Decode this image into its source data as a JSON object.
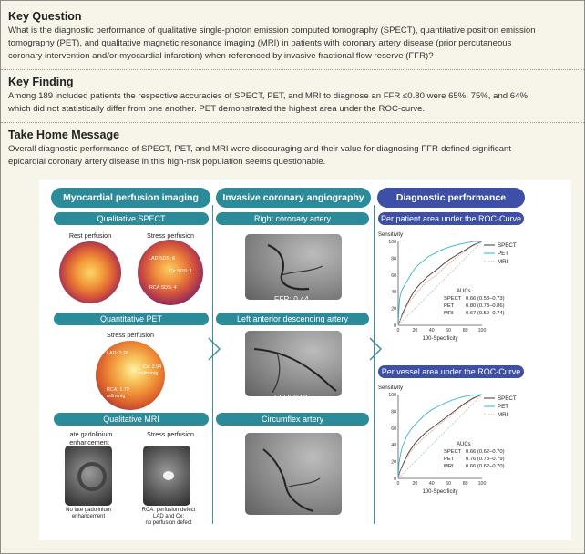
{
  "key_question": {
    "heading": "Key Question",
    "line1": "What is the diagnostic performance of qualitative single-photon emission computed tomography (SPECT), quantitative positron emission",
    "line2": "tomography (PET), and qualitative magnetic resonance imaging (MRI) in patients with coronary artery disease (prior percutaneous",
    "line3": "coronary intervention and/or myocardial infarction) when referenced by invasive fractional flow reserve (FFR)?"
  },
  "key_finding": {
    "heading": "Key Finding",
    "line1": "Among 189 included patients the respective accuracies of SPECT, PET, and MRI to diagnose an FFR ≤0.80 were 65%, 75%, and 64%",
    "line2": "which did not statistically differ from one another. PET demonstrated the highest area under the ROC-curve."
  },
  "take_home": {
    "heading": "Take Home Message",
    "line1": "Overall diagnostic performance of SPECT, PET, and MRI were discouraging and their value for diagnosing FFR-defined significant",
    "line2": "epicardial coronary artery disease in this high-risk population seems questionable."
  },
  "col1": {
    "header": "Myocardial perfusion imaging",
    "spect_label": "Qualitative SPECT",
    "rest_caption": "Rest perfusion",
    "stress_caption": "Stress perfusion",
    "lad_sds": "LAD SDS: 6",
    "cx_sds": "Cx SDS: 1",
    "rca_sds": "RCA SDS: 4",
    "pet_label": "Quantitative PET",
    "pet_stress_caption": "Stress perfusion",
    "pet_lad": "LAD: 2.26",
    "pet_cx": "Cx: 2.94",
    "pet_cx_unit": "ml/min/g",
    "pet_rca": "RCA: 1.72",
    "pet_rca_unit": "ml/min/g",
    "mri_label": "Qualitative MRI",
    "lge_caption_1": "Late gadolinium",
    "lge_caption_2": "enhancement",
    "mri_stress_caption": "Stress perfusion",
    "lge_note_1": "No late gadolinium",
    "lge_note_2": "enhancement",
    "stress_note_1": "RCA: perfusion defect",
    "stress_note_2": "LAD and Cx:",
    "stress_note_3": "no perfusion defect"
  },
  "col2": {
    "header": "Invasive coronary angiography",
    "rca_label": "Right coronary artery",
    "rca_ffr": "FFR: 0.44",
    "lad_label": "Left anterior descending artery",
    "lad_ffr": "FFR: 0.91",
    "cx_label": "Circumflex artery",
    "cx_ffr": "FFR: 0.93"
  },
  "col3": {
    "header": "Diagnostic performance",
    "patient_label": "Per patient area under the ROC-Curve",
    "vessel_label": "Per vessel area under the ROC-Curve"
  },
  "colors": {
    "teal": "#2c8b99",
    "purple": "#3d4fa6",
    "spect": "#3a3a3a",
    "pet": "#33b3cf",
    "mri": "#e59a7c"
  },
  "chart_data": [
    {
      "type": "line",
      "title": "Per patient area under the ROC-Curve",
      "ylabel": "Sensitivity",
      "xlabel": "100-Specificity",
      "xlim": [
        0,
        100
      ],
      "ylim": [
        0,
        100
      ],
      "xticks": [
        "0",
        "20",
        "40",
        "60",
        "80",
        "100"
      ],
      "yticks": [
        "0",
        "20",
        "40",
        "60",
        "80",
        "100"
      ],
      "legend": "top-right",
      "auc_heading": "AUCs",
      "series": [
        {
          "name": "SPECT",
          "auc": "0.66 (0.58–0.73)",
          "x": [
            0,
            3,
            5,
            8,
            12,
            15,
            20,
            25,
            30,
            35,
            40,
            48,
            55,
            62,
            70,
            80,
            90,
            100
          ],
          "y": [
            0,
            8,
            14,
            20,
            28,
            34,
            42,
            48,
            53,
            58,
            62,
            68,
            74,
            79,
            84,
            90,
            96,
            100
          ]
        },
        {
          "name": "PET",
          "auc": "0.80 (0.73–0.86)",
          "x": [
            0,
            1,
            2,
            4,
            6,
            9,
            12,
            16,
            20,
            25,
            30,
            36,
            44,
            52,
            60,
            70,
            80,
            90,
            100
          ],
          "y": [
            0,
            20,
            33,
            41,
            45,
            50,
            55,
            62,
            68,
            73,
            77,
            82,
            86,
            90,
            93,
            96,
            98,
            100,
            100
          ]
        },
        {
          "name": "MRI",
          "auc": "0.67 (0.59–0.74)",
          "x": [
            0,
            4,
            8,
            12,
            18,
            25,
            32,
            40,
            48,
            56,
            66,
            76,
            88,
            100
          ],
          "y": [
            0,
            10,
            18,
            26,
            34,
            42,
            50,
            56,
            62,
            70,
            78,
            86,
            94,
            100
          ]
        }
      ]
    },
    {
      "type": "line",
      "title": "Per vessel area under the ROC-Curve",
      "ylabel": "Sensitivity",
      "xlabel": "100-Specificity",
      "xlim": [
        0,
        100
      ],
      "ylim": [
        0,
        100
      ],
      "xticks": [
        "0",
        "20",
        "40",
        "60",
        "80",
        "100"
      ],
      "yticks": [
        "0",
        "20",
        "40",
        "60",
        "80",
        "100"
      ],
      "legend": "top-right",
      "auc_heading": "AUCs",
      "series": [
        {
          "name": "SPECT",
          "auc": "0.66 (0.62–0.70)",
          "x": [
            0,
            2,
            5,
            8,
            12,
            16,
            20,
            26,
            32,
            40,
            48,
            56,
            64,
            72,
            80,
            90,
            100
          ],
          "y": [
            0,
            8,
            15,
            22,
            30,
            36,
            42,
            48,
            54,
            60,
            66,
            72,
            78,
            84,
            90,
            96,
            100
          ]
        },
        {
          "name": "PET",
          "auc": "0.76 (0.73–0.79)",
          "x": [
            0,
            1,
            3,
            5,
            8,
            11,
            15,
            20,
            26,
            32,
            40,
            48,
            56,
            66,
            76,
            86,
            100
          ],
          "y": [
            0,
            18,
            30,
            38,
            45,
            52,
            58,
            64,
            70,
            76,
            82,
            86,
            90,
            94,
            97,
            99,
            100
          ]
        },
        {
          "name": "MRI",
          "auc": "0.66 (0.62–0.70)",
          "x": [
            0,
            3,
            6,
            10,
            15,
            22,
            30,
            38,
            46,
            56,
            66,
            76,
            88,
            100
          ],
          "y": [
            0,
            10,
            16,
            24,
            32,
            40,
            48,
            55,
            62,
            70,
            78,
            86,
            94,
            100
          ]
        }
      ]
    }
  ]
}
